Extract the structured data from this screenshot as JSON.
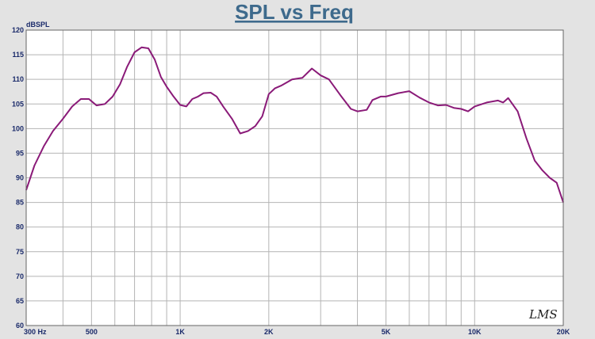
{
  "chart_data": {
    "type": "line",
    "title": "SPL vs Freq",
    "ylabel": "dBSPL",
    "xscale": "log",
    "xlim": [
      300,
      20000
    ],
    "ylim": [
      60,
      120
    ],
    "y_ticks": [
      60,
      65,
      70,
      75,
      80,
      85,
      90,
      95,
      100,
      105,
      110,
      115,
      120
    ],
    "x_ticks": [
      {
        "value": 300,
        "label": "300  Hz"
      },
      {
        "value": 500,
        "label": "500"
      },
      {
        "value": 1000,
        "label": "1K"
      },
      {
        "value": 2000,
        "label": "2K"
      },
      {
        "value": 5000,
        "label": "5K"
      },
      {
        "value": 10000,
        "label": "10K"
      },
      {
        "value": 20000,
        "label": "20K"
      }
    ],
    "grid": true,
    "colors": {
      "line": "#8a1a78",
      "background": "#e3e3e3",
      "plot": "#ffffff",
      "grid": "#b4b4b4",
      "title": "#3e6a8c"
    },
    "watermark": "LMS",
    "series": [
      {
        "x": [
          300,
          320,
          345,
          370,
          400,
          430,
          460,
          490,
          520,
          555,
          590,
          625,
          660,
          700,
          740,
          780,
          820,
          860,
          900,
          950,
          1000,
          1050,
          1100,
          1150,
          1200,
          1270,
          1330,
          1400,
          1500,
          1600,
          1700,
          1800,
          1900,
          2000,
          2100,
          2200,
          2400,
          2600,
          2800,
          3000,
          3200,
          3500,
          3800,
          4000,
          4300,
          4500,
          4800,
          5000,
          5500,
          6000,
          6500,
          7000,
          7500,
          8000,
          8500,
          9000,
          9500,
          10000,
          11000,
          12000,
          12500,
          13000,
          14000,
          15000,
          16000,
          17000,
          18000,
          19000,
          20000
        ],
        "y": [
          87.5,
          92.5,
          96.5,
          99.5,
          102,
          104.5,
          106,
          106,
          104.7,
          105,
          106.5,
          109,
          112.5,
          115.5,
          116.5,
          116.3,
          114,
          110.5,
          108.5,
          106.5,
          104.8,
          104.5,
          106,
          106.5,
          107.2,
          107.3,
          106.5,
          104.5,
          102,
          99,
          99.5,
          100.5,
          102.5,
          107,
          108.2,
          108.7,
          110,
          110.3,
          112.2,
          110.8,
          110,
          106.8,
          104,
          103.5,
          103.8,
          105.8,
          106.5,
          106.5,
          107.2,
          107.6,
          106.3,
          105.3,
          104.7,
          104.8,
          104.2,
          104,
          103.5,
          104.5,
          105.3,
          105.7,
          105.3,
          106.2,
          103.5,
          98,
          93.5,
          91.5,
          90,
          89,
          85
        ]
      }
    ]
  }
}
